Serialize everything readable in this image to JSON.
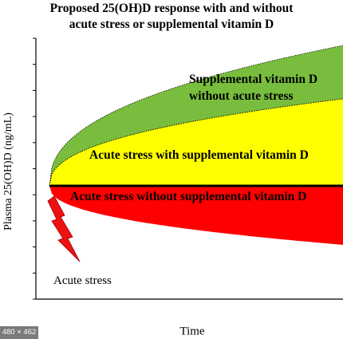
{
  "chart_data": {
    "type": "area",
    "title": [
      "Proposed 25(OH)D response with and without",
      "acute stress or supplemental vitamin D"
    ],
    "xlabel": "Time",
    "ylabel": "Plasma 25(OH)D (ng/mL)",
    "y_ticks_labeled": false,
    "series": [
      {
        "name": "Supplemental vitamin D without acute stress",
        "color": "#79bd3e",
        "peak": 1.0
      },
      {
        "name": "Acute stress with supplemental vitamin D",
        "color": "#ffff00",
        "peak": 0.62
      },
      {
        "name": "Acute stress without supplemental vitamin D",
        "color": "#ff0000",
        "peak": -0.42
      }
    ],
    "baseline_color": "#000000",
    "annotation": "Acute stress",
    "annotation_color": "#ee1111"
  },
  "badge": "480 × 462"
}
